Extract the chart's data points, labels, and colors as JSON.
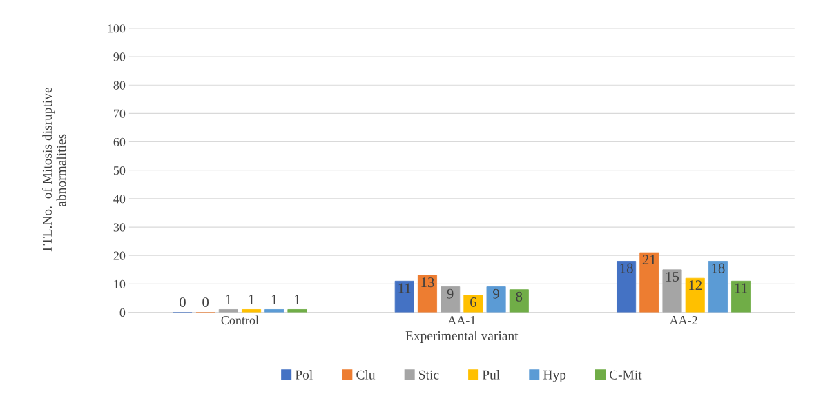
{
  "chart_data": {
    "type": "bar",
    "xlabel": "Experimental variant",
    "ylabel": "TTL.No.  of Mitosis disruptive\nabnormalities",
    "categories": [
      "Control",
      "AA-1",
      "AA-2"
    ],
    "series": [
      {
        "name": "Pol",
        "color": "#4472c4",
        "values": [
          0,
          11,
          18
        ]
      },
      {
        "name": "Clu",
        "color": "#ed7d31",
        "values": [
          0,
          13,
          21
        ]
      },
      {
        "name": "Stic",
        "color": "#a5a5a5",
        "values": [
          1,
          9,
          15
        ]
      },
      {
        "name": "Pul",
        "color": "#ffc000",
        "values": [
          1,
          6,
          12
        ]
      },
      {
        "name": "Hyp",
        "color": "#5b9bd5",
        "values": [
          1,
          9,
          18
        ]
      },
      {
        "name": "C-Mit",
        "color": "#70ad47",
        "values": [
          1,
          8,
          11
        ]
      }
    ],
    "ylim": [
      0,
      100
    ],
    "yticks": [
      0,
      10,
      20,
      30,
      40,
      50,
      60,
      70,
      80,
      90,
      100
    ],
    "grid": "y",
    "legend": "bottom",
    "data_labels": true
  }
}
